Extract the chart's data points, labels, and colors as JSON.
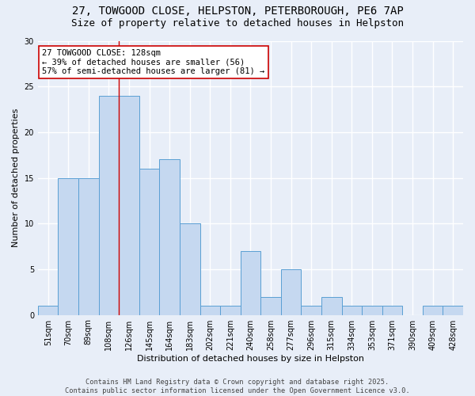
{
  "title1": "27, TOWGOOD CLOSE, HELPSTON, PETERBOROUGH, PE6 7AP",
  "title2": "Size of property relative to detached houses in Helpston",
  "xlabel": "Distribution of detached houses by size in Helpston",
  "ylabel": "Number of detached properties",
  "categories": [
    "51sqm",
    "70sqm",
    "89sqm",
    "108sqm",
    "126sqm",
    "145sqm",
    "164sqm",
    "183sqm",
    "202sqm",
    "221sqm",
    "240sqm",
    "258sqm",
    "277sqm",
    "296sqm",
    "315sqm",
    "334sqm",
    "353sqm",
    "371sqm",
    "390sqm",
    "409sqm",
    "428sqm"
  ],
  "values": [
    1,
    15,
    15,
    24,
    24,
    16,
    17,
    10,
    1,
    1,
    7,
    2,
    5,
    1,
    2,
    1,
    1,
    1,
    0,
    1,
    1
  ],
  "bar_color": "#c5d8f0",
  "bar_edge_color": "#5a9fd4",
  "red_line_x": 3.5,
  "annotation_line1": "27 TOWGOOD CLOSE: 128sqm",
  "annotation_line2": "← 39% of detached houses are smaller (56)",
  "annotation_line3": "57% of semi-detached houses are larger (81) →",
  "annotation_box_color": "#ffffff",
  "annotation_box_edge": "#cc0000",
  "red_line_color": "#cc0000",
  "ylim": [
    0,
    30
  ],
  "yticks": [
    0,
    5,
    10,
    15,
    20,
    25,
    30
  ],
  "footer1": "Contains HM Land Registry data © Crown copyright and database right 2025.",
  "footer2": "Contains public sector information licensed under the Open Government Licence v3.0.",
  "bg_color": "#e8eef8",
  "grid_color": "#ffffff",
  "title_fontsize": 10,
  "subtitle_fontsize": 9,
  "ann_fontsize": 7.5,
  "footer_fontsize": 6.2,
  "xlabel_fontsize": 8,
  "ylabel_fontsize": 8,
  "tick_fontsize": 7
}
